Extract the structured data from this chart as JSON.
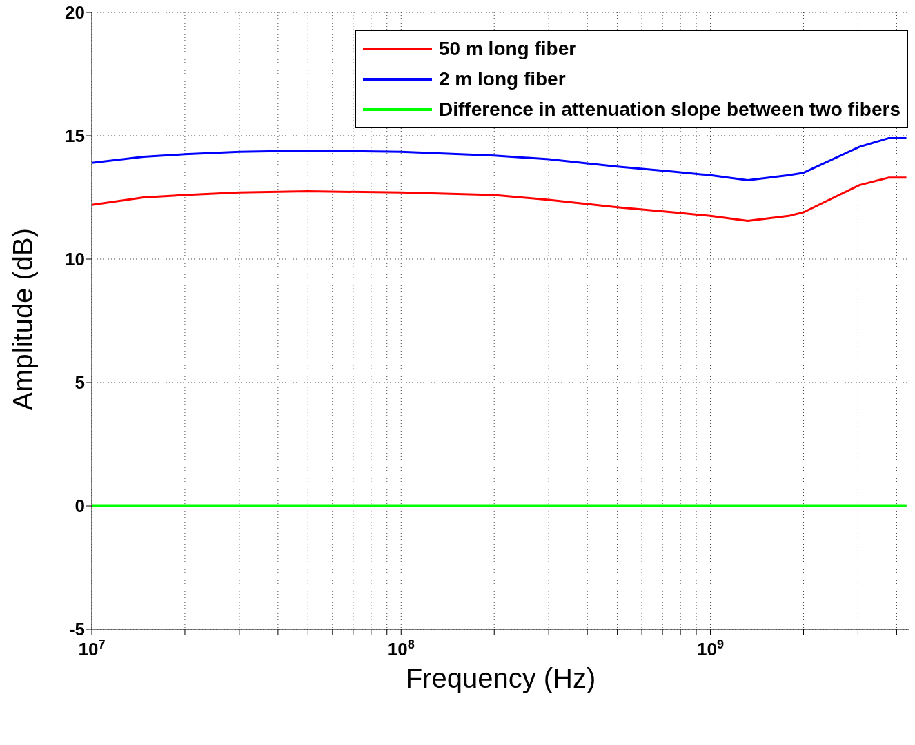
{
  "chart_data": {
    "type": "line",
    "xlabel": "Frequency (Hz)",
    "ylabel": "Amplitude (dB)",
    "log": "x",
    "grid": true,
    "legend": "top right",
    "line_style": "solid",
    "marker": "none",
    "xlim": [
      10000000,
      4400000000
    ],
    "xticks": [
      {
        "value": 10000000,
        "label": "10$^{7}$"
      },
      {
        "value": 20000000,
        "label": null
      },
      {
        "value": 30000000,
        "label": null
      },
      {
        "value": 40000000,
        "label": null
      },
      {
        "value": 50000000,
        "label": null
      },
      {
        "value": 60000000,
        "label": null
      },
      {
        "value": 70000000,
        "label": null
      },
      {
        "value": 80000000,
        "label": null
      },
      {
        "value": 90000000,
        "label": null
      },
      {
        "value": 100000000,
        "label": "10$^{8}$"
      },
      {
        "value": 200000000,
        "label": null
      },
      {
        "value": 300000000,
        "label": null
      },
      {
        "value": 400000000,
        "label": null
      },
      {
        "value": 500000000,
        "label": null
      },
      {
        "value": 600000000,
        "label": null
      },
      {
        "value": 700000000,
        "label": null
      },
      {
        "value": 800000000,
        "label": null
      },
      {
        "value": 900000000,
        "label": null
      },
      {
        "value": 1000000000,
        "label": "10$^{9}$"
      },
      {
        "value": 2000000000,
        "label": null
      },
      {
        "value": 3000000000,
        "label": null
      },
      {
        "value": 4000000000,
        "label": null
      }
    ],
    "ylim": [
      -5,
      20
    ],
    "yticks": [
      -5,
      0,
      5,
      10,
      15,
      20
    ],
    "x": [
      10000000,
      14700000,
      20000000,
      30000000,
      50000000,
      100000000,
      200000000,
      300000000,
      500000000,
      757000000,
      1000000000,
      1320000000,
      1790000000,
      2000000000,
      3030000000,
      3760000000,
      4300000000
    ],
    "series": [
      {
        "name": "50 m long fiber",
        "color": "#ff0000",
        "values": [
          12.2,
          12.5,
          12.6,
          12.7,
          12.75,
          12.7,
          12.6,
          12.4,
          12.1,
          11.9,
          11.75,
          11.55,
          11.75,
          11.9,
          13.0,
          13.3,
          13.3
        ]
      },
      {
        "name": "2 m long fiber",
        "color": "#0000ff",
        "values": [
          13.9,
          14.15,
          14.25,
          14.35,
          14.4,
          14.35,
          14.2,
          14.05,
          13.75,
          13.55,
          13.4,
          13.2,
          13.4,
          13.5,
          14.55,
          14.9,
          14.9
        ]
      },
      {
        "name": "Difference in attenuation slope between two fibers",
        "color": "#00ff00",
        "values": [
          0,
          0,
          0,
          0,
          0,
          0,
          0,
          0,
          0,
          0,
          0,
          0,
          0,
          0,
          0,
          0,
          0
        ]
      }
    ]
  }
}
